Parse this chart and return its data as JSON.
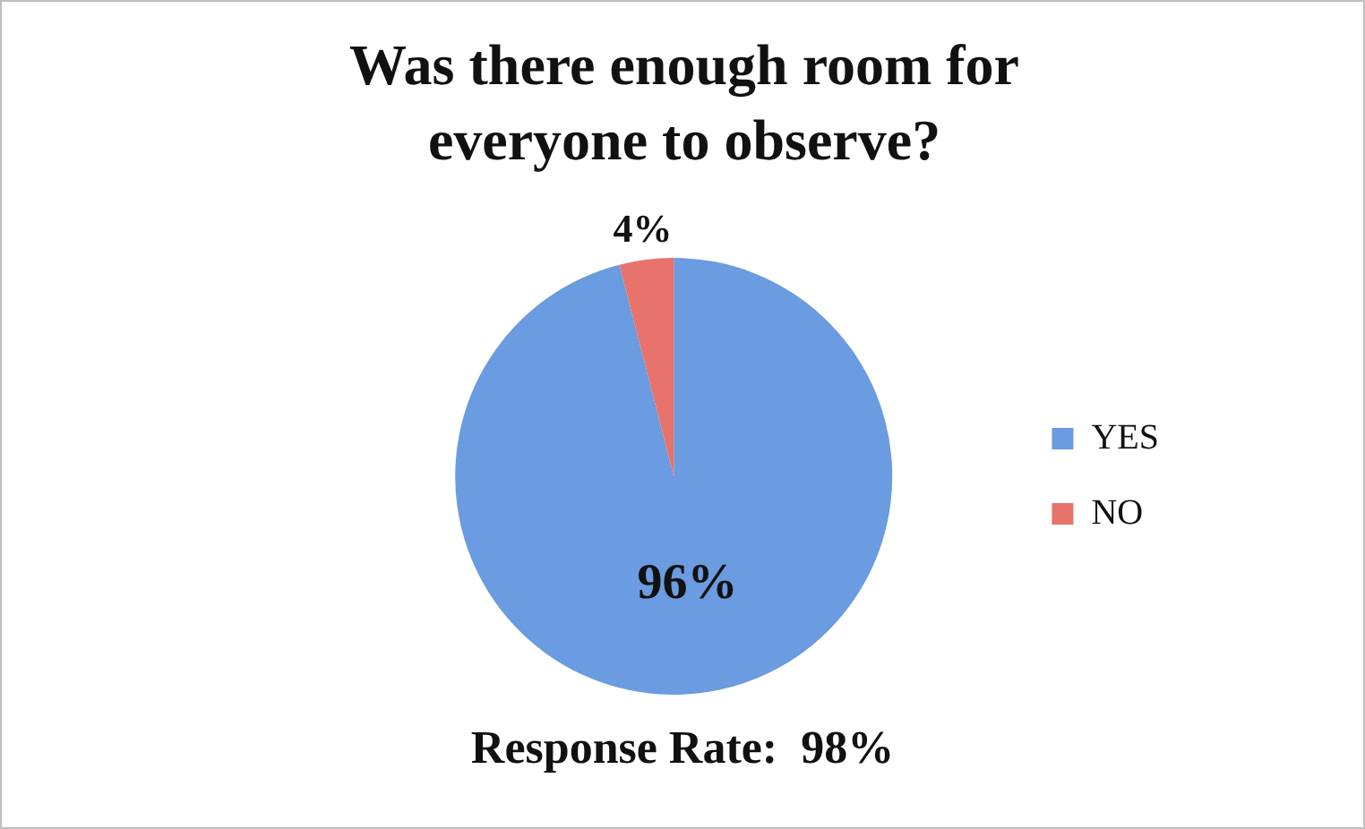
{
  "chart_data": {
    "type": "pie",
    "title": "Was there enough room for everyone to observe?",
    "categories": [
      "YES",
      "NO"
    ],
    "values": [
      96,
      4
    ],
    "colors": [
      "#6b9be0",
      "#e8736c"
    ],
    "value_labels": [
      "96%",
      "4%"
    ],
    "legend": "right",
    "annotations": [
      "Response Rate:  98%"
    ]
  }
}
